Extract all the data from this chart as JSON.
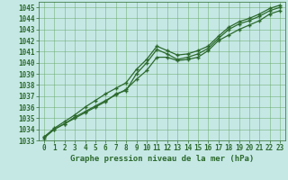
{
  "x_values": [
    0,
    1,
    2,
    3,
    4,
    5,
    6,
    7,
    8,
    9,
    10,
    11,
    12,
    13,
    14,
    15,
    16,
    17,
    18,
    19,
    20,
    21,
    22,
    23
  ],
  "line1": [
    1033.3,
    1034.0,
    1034.5,
    1035.0,
    1035.5,
    1036.0,
    1036.5,
    1037.2,
    1037.5,
    1039.0,
    1040.0,
    1041.2,
    1040.8,
    1040.3,
    1040.5,
    1040.8,
    1041.3,
    1042.2,
    1043.0,
    1043.5,
    1043.8,
    1044.2,
    1044.7,
    1045.0
  ],
  "line2": [
    1033.2,
    1034.0,
    1034.5,
    1035.1,
    1035.6,
    1036.1,
    1036.6,
    1037.1,
    1037.6,
    1038.5,
    1039.3,
    1040.5,
    1040.5,
    1040.2,
    1040.3,
    1040.5,
    1041.1,
    1042.0,
    1042.5,
    1043.0,
    1043.4,
    1043.8,
    1044.4,
    1044.7
  ],
  "line3": [
    1033.3,
    1034.1,
    1034.7,
    1035.3,
    1036.0,
    1036.6,
    1037.2,
    1037.7,
    1038.2,
    1039.4,
    1040.3,
    1041.5,
    1041.1,
    1040.7,
    1040.8,
    1041.1,
    1041.5,
    1042.4,
    1043.2,
    1043.7,
    1044.0,
    1044.4,
    1044.9,
    1045.2
  ],
  "line_color": "#2d6a2d",
  "bg_color": "#c5e8e5",
  "grid_color": "#6aaa6a",
  "ylim_min": 1033,
  "ylim_max": 1045,
  "xlabel": "Graphe pression niveau de la mer (hPa)",
  "tick_fontsize": 5.5
}
